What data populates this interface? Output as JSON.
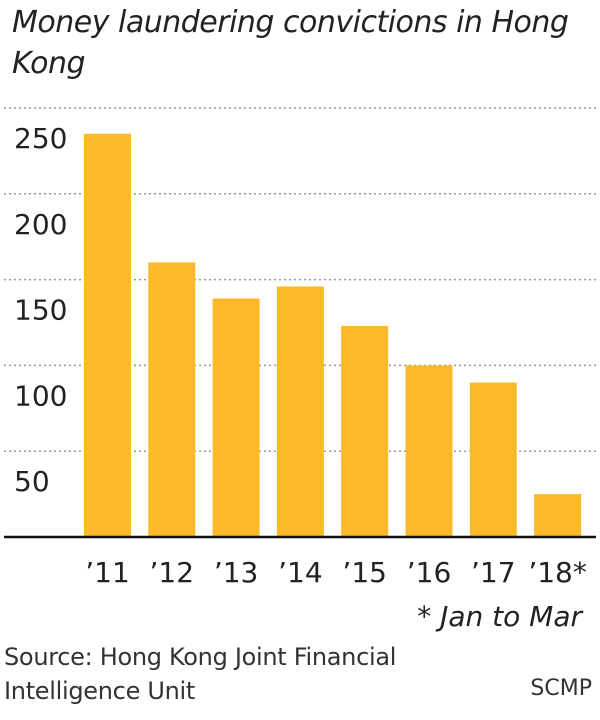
{
  "chart_data": {
    "type": "bar",
    "title": "Money laundering convictions in Hong Kong",
    "categories": [
      "’11",
      "’12",
      "’13",
      "’14",
      "’15",
      "’16",
      "’17",
      "’18*"
    ],
    "values": [
      235,
      160,
      139,
      146,
      123,
      100,
      90,
      25
    ],
    "ylim": [
      0,
      250
    ],
    "yticks": [
      50,
      100,
      150,
      200,
      250
    ],
    "grid": true,
    "bar_color": "#FDB927",
    "grid_color": "#9a9a9a",
    "axis_color": "#111111",
    "footnote": "* Jan to Mar"
  },
  "source": "Source: Hong Kong Joint Financial Intelligence Unit",
  "credit": "SCMP"
}
